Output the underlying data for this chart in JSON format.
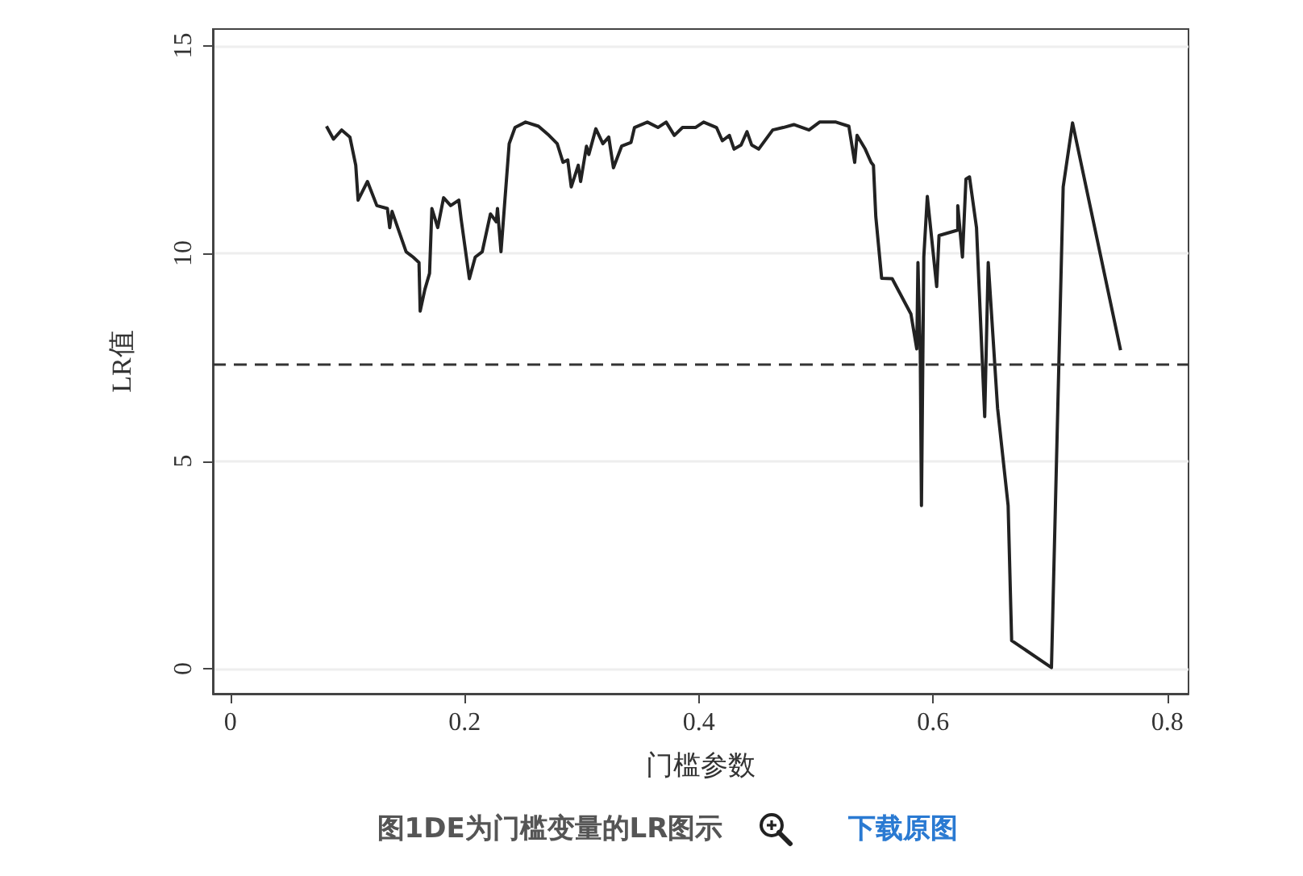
{
  "chart_data": {
    "type": "line",
    "xlabel": "门槛参数",
    "ylabel": "LR值",
    "xlim": [
      -0.015,
      0.818
    ],
    "xticks": [
      0,
      0.2,
      0.4,
      0.6,
      0.8
    ],
    "ylim": [
      -0.6,
      15.4
    ],
    "yticks": [
      0,
      5,
      10,
      15
    ],
    "grid": "y",
    "marker": "none",
    "line_style": "solid",
    "ref_lines": [
      {
        "axis": "y",
        "value": 7.33,
        "line_style": "dashed",
        "color": "#333333"
      }
    ],
    "annotations": [
      "图1DE为门槛变量的LR图示",
      "下载原图"
    ],
    "series": [
      {
        "color": "#222222",
        "x": [
          0.082,
          0.088,
          0.095,
          0.102,
          0.107,
          0.109,
          0.117,
          0.125,
          0.134,
          0.136,
          0.138,
          0.15,
          0.156,
          0.161,
          0.162,
          0.166,
          0.17,
          0.172,
          0.177,
          0.182,
          0.188,
          0.195,
          0.197,
          0.204,
          0.209,
          0.215,
          0.222,
          0.227,
          0.228,
          0.231,
          0.238,
          0.243,
          0.252,
          0.263,
          0.272,
          0.279,
          0.284,
          0.288,
          0.291,
          0.297,
          0.299,
          0.304,
          0.306,
          0.312,
          0.318,
          0.323,
          0.327,
          0.334,
          0.342,
          0.345,
          0.356,
          0.365,
          0.372,
          0.379,
          0.386,
          0.397,
          0.404,
          0.415,
          0.42,
          0.426,
          0.43,
          0.436,
          0.441,
          0.445,
          0.451,
          0.463,
          0.472,
          0.481,
          0.494,
          0.503,
          0.517,
          0.528,
          0.533,
          0.535,
          0.542,
          0.547,
          0.549,
          0.551,
          0.556,
          0.565,
          0.581,
          0.586,
          0.587,
          0.589,
          0.59,
          0.592,
          0.595,
          0.603,
          0.605,
          0.621,
          0.621,
          0.625,
          0.628,
          0.631,
          0.637,
          0.644,
          0.647,
          0.655,
          0.664,
          0.667,
          0.701,
          0.711,
          0.719,
          0.76
        ],
        "values": [
          13.06,
          12.75,
          12.97,
          12.8,
          12.12,
          11.28,
          11.73,
          11.15,
          11.08,
          10.62,
          11.01,
          10.04,
          9.91,
          9.78,
          8.61,
          9.13,
          9.52,
          11.08,
          10.62,
          11.34,
          11.15,
          11.28,
          10.82,
          9.39,
          9.91,
          10.04,
          10.95,
          10.76,
          11.08,
          10.04,
          12.64,
          13.03,
          13.16,
          13.06,
          12.84,
          12.64,
          12.19,
          12.25,
          11.6,
          12.12,
          11.73,
          12.58,
          12.38,
          13.0,
          12.64,
          12.8,
          12.06,
          12.58,
          12.67,
          13.03,
          13.16,
          13.03,
          13.16,
          12.84,
          13.03,
          13.03,
          13.16,
          13.03,
          12.71,
          12.84,
          12.51,
          12.61,
          12.93,
          12.61,
          12.51,
          12.97,
          13.03,
          13.1,
          12.97,
          13.16,
          13.16,
          13.06,
          12.19,
          12.84,
          12.51,
          12.19,
          12.12,
          10.89,
          9.4,
          9.39,
          8.54,
          7.7,
          9.78,
          7.57,
          3.93,
          9.91,
          11.37,
          9.2,
          10.43,
          10.56,
          11.15,
          9.91,
          11.79,
          11.84,
          10.62,
          6.07,
          9.78,
          6.27,
          3.93,
          0.68,
          0.03,
          11.6,
          13.14,
          7.67
        ]
      }
    ]
  }
}
